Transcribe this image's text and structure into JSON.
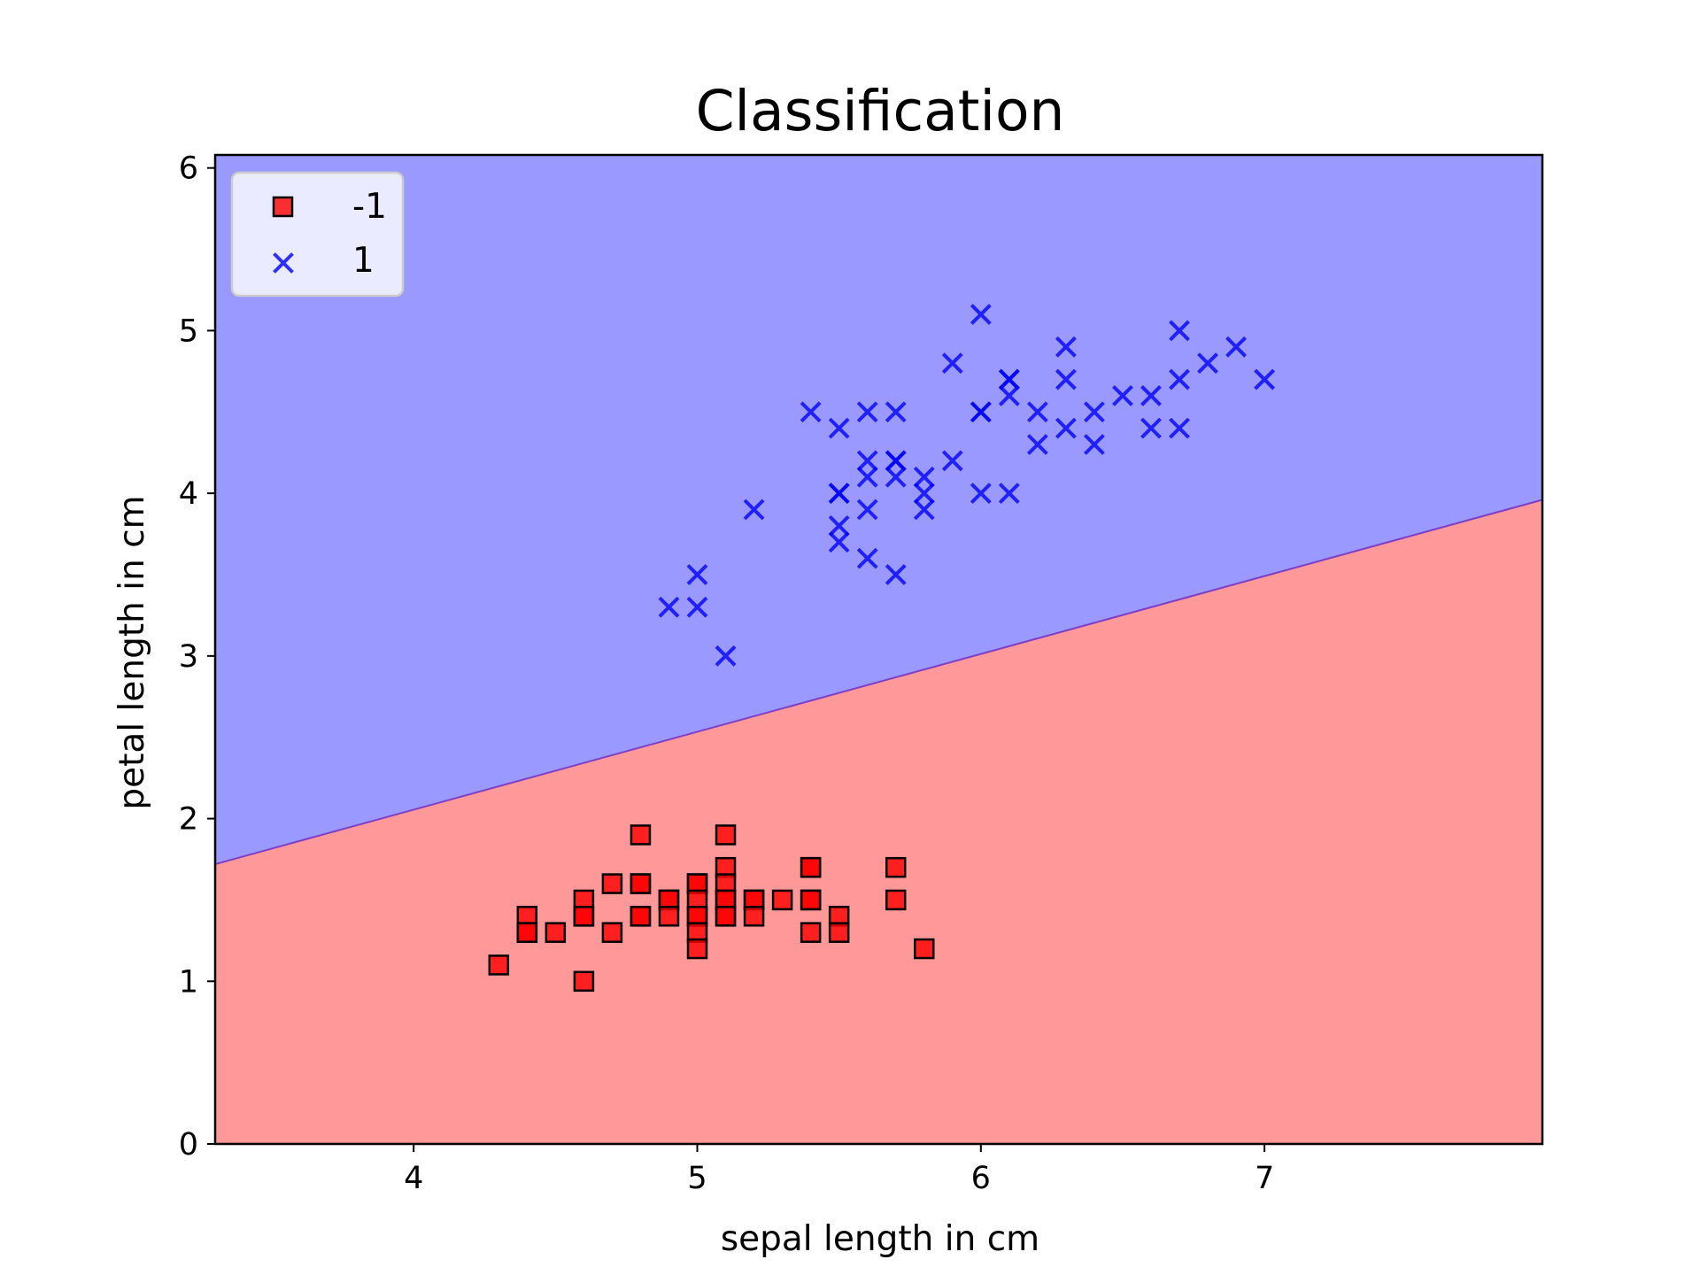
{
  "chart_data": {
    "type": "scatter",
    "title": "Classification",
    "xlabel": "sepal length in cm",
    "ylabel": "petal length in cm",
    "xlim": [
      3.3,
      7.98
    ],
    "ylim": [
      0,
      6.08
    ],
    "xticks": [
      4,
      5,
      6,
      7
    ],
    "yticks": [
      0,
      1,
      2,
      3,
      4,
      5,
      6
    ],
    "grid": false,
    "legend_position": "upper-left",
    "decision_boundary": {
      "description": "linear separator; region above predicts 1, region below predicts -1",
      "points": [
        [
          3.3,
          1.72
        ],
        [
          7.98,
          3.96
        ]
      ],
      "upper_region_class": "1",
      "lower_region_class": "-1",
      "upper_region_color": "#9999ff",
      "lower_region_color": "#ff9999",
      "boundary_color": "#7d3fc8"
    },
    "series": [
      {
        "name": "-1",
        "marker": "square",
        "color": "#ff0000",
        "edge_color": "#000000",
        "points": [
          [
            4.3,
            1.1
          ],
          [
            4.4,
            1.4
          ],
          [
            4.4,
            1.3
          ],
          [
            4.4,
            1.3
          ],
          [
            4.5,
            1.3
          ],
          [
            4.6,
            1.5
          ],
          [
            4.6,
            1.4
          ],
          [
            4.6,
            1.4
          ],
          [
            4.6,
            1.0
          ],
          [
            4.7,
            1.6
          ],
          [
            4.7,
            1.3
          ],
          [
            4.8,
            1.9
          ],
          [
            4.8,
            1.6
          ],
          [
            4.8,
            1.6
          ],
          [
            4.8,
            1.4
          ],
          [
            4.8,
            1.4
          ],
          [
            4.9,
            1.5
          ],
          [
            4.9,
            1.5
          ],
          [
            4.9,
            1.4
          ],
          [
            5.0,
            1.6
          ],
          [
            5.0,
            1.6
          ],
          [
            5.0,
            1.5
          ],
          [
            5.0,
            1.4
          ],
          [
            5.0,
            1.4
          ],
          [
            5.0,
            1.3
          ],
          [
            5.0,
            1.2
          ],
          [
            5.1,
            1.9
          ],
          [
            5.1,
            1.7
          ],
          [
            5.1,
            1.6
          ],
          [
            5.1,
            1.5
          ],
          [
            5.1,
            1.5
          ],
          [
            5.1,
            1.4
          ],
          [
            5.1,
            1.4
          ],
          [
            5.2,
            1.5
          ],
          [
            5.2,
            1.5
          ],
          [
            5.2,
            1.4
          ],
          [
            5.3,
            1.5
          ],
          [
            5.4,
            1.7
          ],
          [
            5.4,
            1.7
          ],
          [
            5.4,
            1.5
          ],
          [
            5.4,
            1.5
          ],
          [
            5.4,
            1.3
          ],
          [
            5.5,
            1.4
          ],
          [
            5.5,
            1.3
          ],
          [
            5.7,
            1.7
          ],
          [
            5.7,
            1.5
          ],
          [
            5.8,
            1.2
          ]
        ]
      },
      {
        "name": "1",
        "marker": "x",
        "color": "#0000ff",
        "points": [
          [
            4.9,
            3.3
          ],
          [
            5.0,
            3.5
          ],
          [
            5.0,
            3.3
          ],
          [
            5.1,
            3.0
          ],
          [
            5.2,
            3.9
          ],
          [
            5.4,
            4.5
          ],
          [
            5.5,
            4.4
          ],
          [
            5.5,
            4.0
          ],
          [
            5.5,
            4.0
          ],
          [
            5.5,
            3.8
          ],
          [
            5.5,
            3.7
          ],
          [
            5.6,
            4.5
          ],
          [
            5.6,
            4.2
          ],
          [
            5.6,
            4.1
          ],
          [
            5.6,
            3.9
          ],
          [
            5.6,
            3.6
          ],
          [
            5.7,
            4.5
          ],
          [
            5.7,
            4.2
          ],
          [
            5.7,
            4.2
          ],
          [
            5.7,
            4.1
          ],
          [
            5.7,
            3.5
          ],
          [
            5.8,
            4.1
          ],
          [
            5.8,
            4.0
          ],
          [
            5.8,
            3.9
          ],
          [
            5.9,
            4.8
          ],
          [
            5.9,
            4.2
          ],
          [
            6.0,
            5.1
          ],
          [
            6.0,
            4.5
          ],
          [
            6.0,
            4.5
          ],
          [
            6.0,
            4.0
          ],
          [
            6.1,
            4.7
          ],
          [
            6.1,
            4.7
          ],
          [
            6.1,
            4.6
          ],
          [
            6.1,
            4.0
          ],
          [
            6.2,
            4.5
          ],
          [
            6.2,
            4.3
          ],
          [
            6.3,
            4.9
          ],
          [
            6.3,
            4.7
          ],
          [
            6.3,
            4.4
          ],
          [
            6.4,
            4.5
          ],
          [
            6.4,
            4.3
          ],
          [
            6.5,
            4.6
          ],
          [
            6.6,
            4.6
          ],
          [
            6.6,
            4.4
          ],
          [
            6.7,
            5.0
          ],
          [
            6.7,
            4.7
          ],
          [
            6.7,
            4.4
          ],
          [
            6.8,
            4.8
          ],
          [
            6.9,
            4.9
          ],
          [
            7.0,
            4.7
          ]
        ]
      }
    ]
  }
}
